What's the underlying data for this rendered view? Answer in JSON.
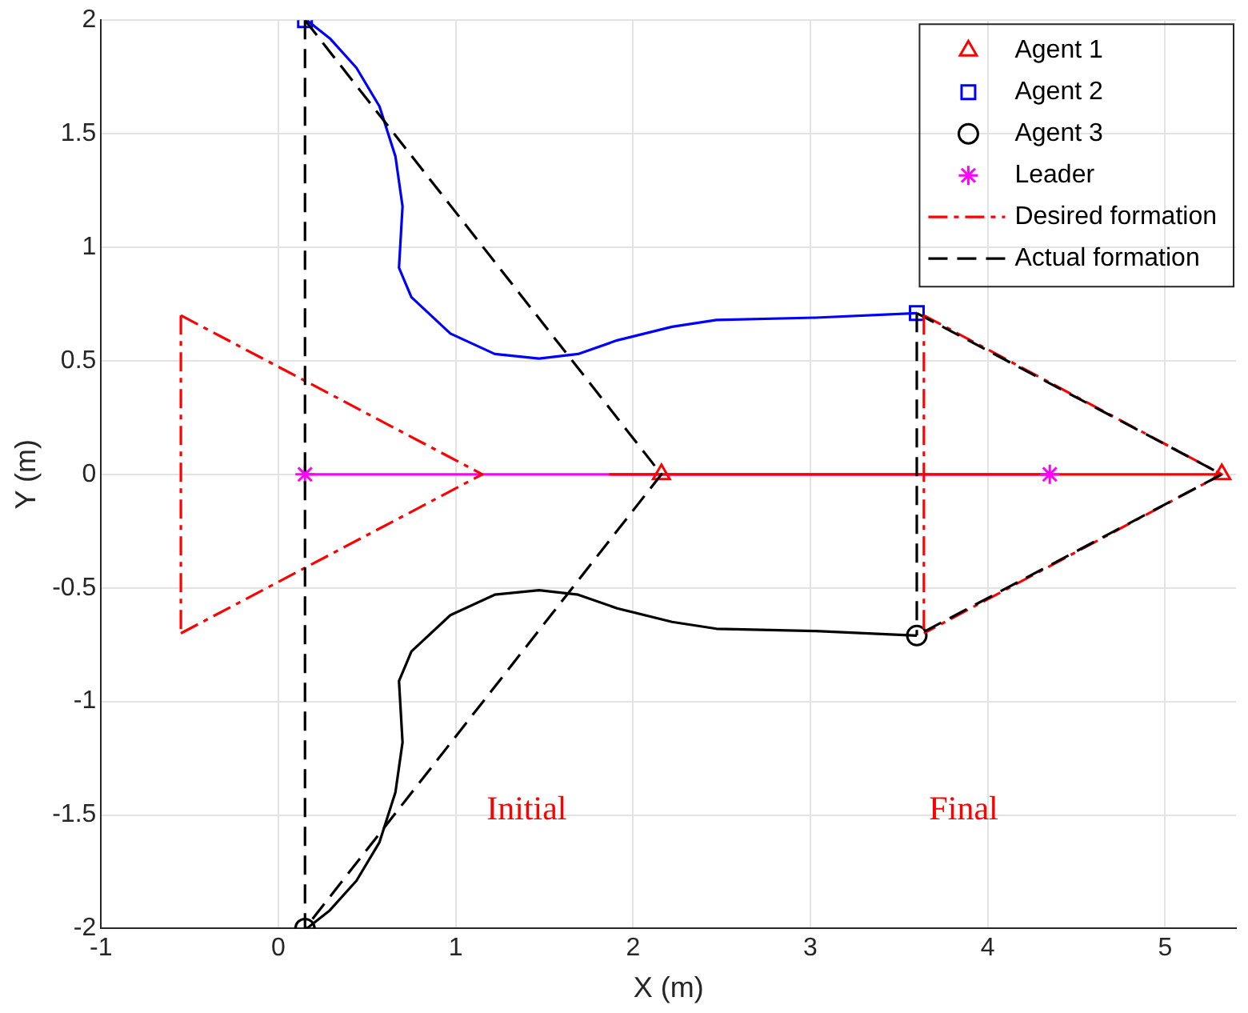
{
  "chart_data": {
    "type": "line",
    "xlabel": "X (m)",
    "ylabel": "Y (m)",
    "xlim": [
      -1,
      5.4
    ],
    "xticks": [
      -1,
      0,
      1,
      2,
      3,
      4,
      5
    ],
    "ylim": [
      -2,
      2
    ],
    "yticks": [
      -2,
      -1.5,
      -1,
      -0.5,
      0,
      0.5,
      1,
      1.5,
      2
    ],
    "grid": true,
    "legend": "top right",
    "annotations": [
      "Initial",
      "Final"
    ],
    "series": [
      {
        "type": "line",
        "line_style": "solid",
        "color": "#ff00ff",
        "x": [
          0.15,
          4.35
        ],
        "values": [
          0,
          0
        ]
      },
      {
        "type": "line",
        "line_style": "solid",
        "color": "#ff0000",
        "x": [
          2.16,
          1.87,
          5.32
        ],
        "values": [
          0,
          0,
          0
        ]
      },
      {
        "type": "line",
        "line_style": "solid",
        "color": "#0000ff",
        "x": [
          0.16,
          0.29,
          0.44,
          0.57,
          0.66,
          0.7,
          0.68,
          0.75,
          0.97,
          1.22,
          1.47,
          1.69,
          1.91,
          2.22,
          2.47,
          3.03,
          3.6
        ],
        "values": [
          2,
          1.92,
          1.79,
          1.62,
          1.4,
          1.18,
          0.91,
          0.78,
          0.62,
          0.53,
          0.51,
          0.53,
          0.59,
          0.65,
          0.68,
          0.69,
          0.71
        ]
      },
      {
        "type": "line",
        "line_style": "solid",
        "color": "#000000",
        "x": [
          0.16,
          0.29,
          0.44,
          0.57,
          0.66,
          0.7,
          0.68,
          0.75,
          0.97,
          1.22,
          1.47,
          1.69,
          1.91,
          2.22,
          2.47,
          3.03,
          3.6
        ],
        "values": [
          -2,
          -1.92,
          -1.79,
          -1.62,
          -1.4,
          -1.18,
          -0.91,
          -0.78,
          -0.62,
          -0.53,
          -0.51,
          -0.53,
          -0.59,
          -0.65,
          -0.68,
          -0.69,
          -0.71
        ]
      },
      {
        "name": "Agent 1",
        "type": "scatter",
        "marker": "triangle",
        "color": "#ff0000",
        "x": [
          2.16,
          5.32
        ],
        "values": [
          0,
          0
        ]
      },
      {
        "name": "Agent 2",
        "type": "scatter",
        "marker": "square",
        "color": "#0000ff",
        "x": [
          0.15,
          3.6
        ],
        "values": [
          2,
          0.71
        ]
      },
      {
        "name": "Agent 3",
        "type": "scatter",
        "marker": "circle",
        "color": "#000000",
        "x": [
          0.15,
          3.6
        ],
        "values": [
          -2,
          -0.71
        ]
      },
      {
        "name": "Leader",
        "type": "scatter",
        "marker": "cross",
        "color": "#ff00ff",
        "x": [
          0.15,
          4.35
        ],
        "values": [
          0,
          0
        ]
      },
      {
        "name": "Desired formation",
        "type": "line",
        "line_style": "dashdot",
        "color": "#ff0000",
        "x": [
          -0.55,
          1.15,
          -0.55
        ],
        "values": [
          0.7,
          0,
          -0.7
        ]
      },
      {
        "name": "Actual formation",
        "type": "line",
        "line_style": "dashed",
        "color": "#000000",
        "x": [
          0.15,
          2.16,
          0.15
        ],
        "values": [
          2,
          0,
          -2
        ]
      },
      {
        "type": "line",
        "line_style": "dashdot",
        "color": "#ff0000",
        "x": [
          3.64,
          5.32,
          3.64
        ],
        "values": [
          0.7,
          0,
          -0.7
        ]
      },
      {
        "type": "line",
        "line_style": "dashed",
        "color": "#000000",
        "x": [
          3.6,
          5.32,
          3.6
        ],
        "values": [
          0.71,
          0,
          -0.71
        ]
      },
      {
        "type": "line",
        "line_style": "dashdot",
        "color": "#ff0000",
        "x": [
          -0.55,
          -0.55
        ],
        "values": [
          0.7,
          -0.7
        ]
      },
      {
        "type": "line",
        "line_style": "dashed",
        "color": "#000000",
        "x": [
          0.15,
          0.15
        ],
        "values": [
          2,
          -2
        ]
      },
      {
        "type": "line",
        "line_style": "dashdot",
        "color": "#ff0000",
        "x": [
          3.64,
          3.64
        ],
        "values": [
          0.7,
          -0.7
        ]
      },
      {
        "type": "line",
        "line_style": "dashed",
        "color": "#000000",
        "x": [
          3.6,
          3.6
        ],
        "values": [
          0.71,
          -0.71
        ]
      }
    ]
  }
}
